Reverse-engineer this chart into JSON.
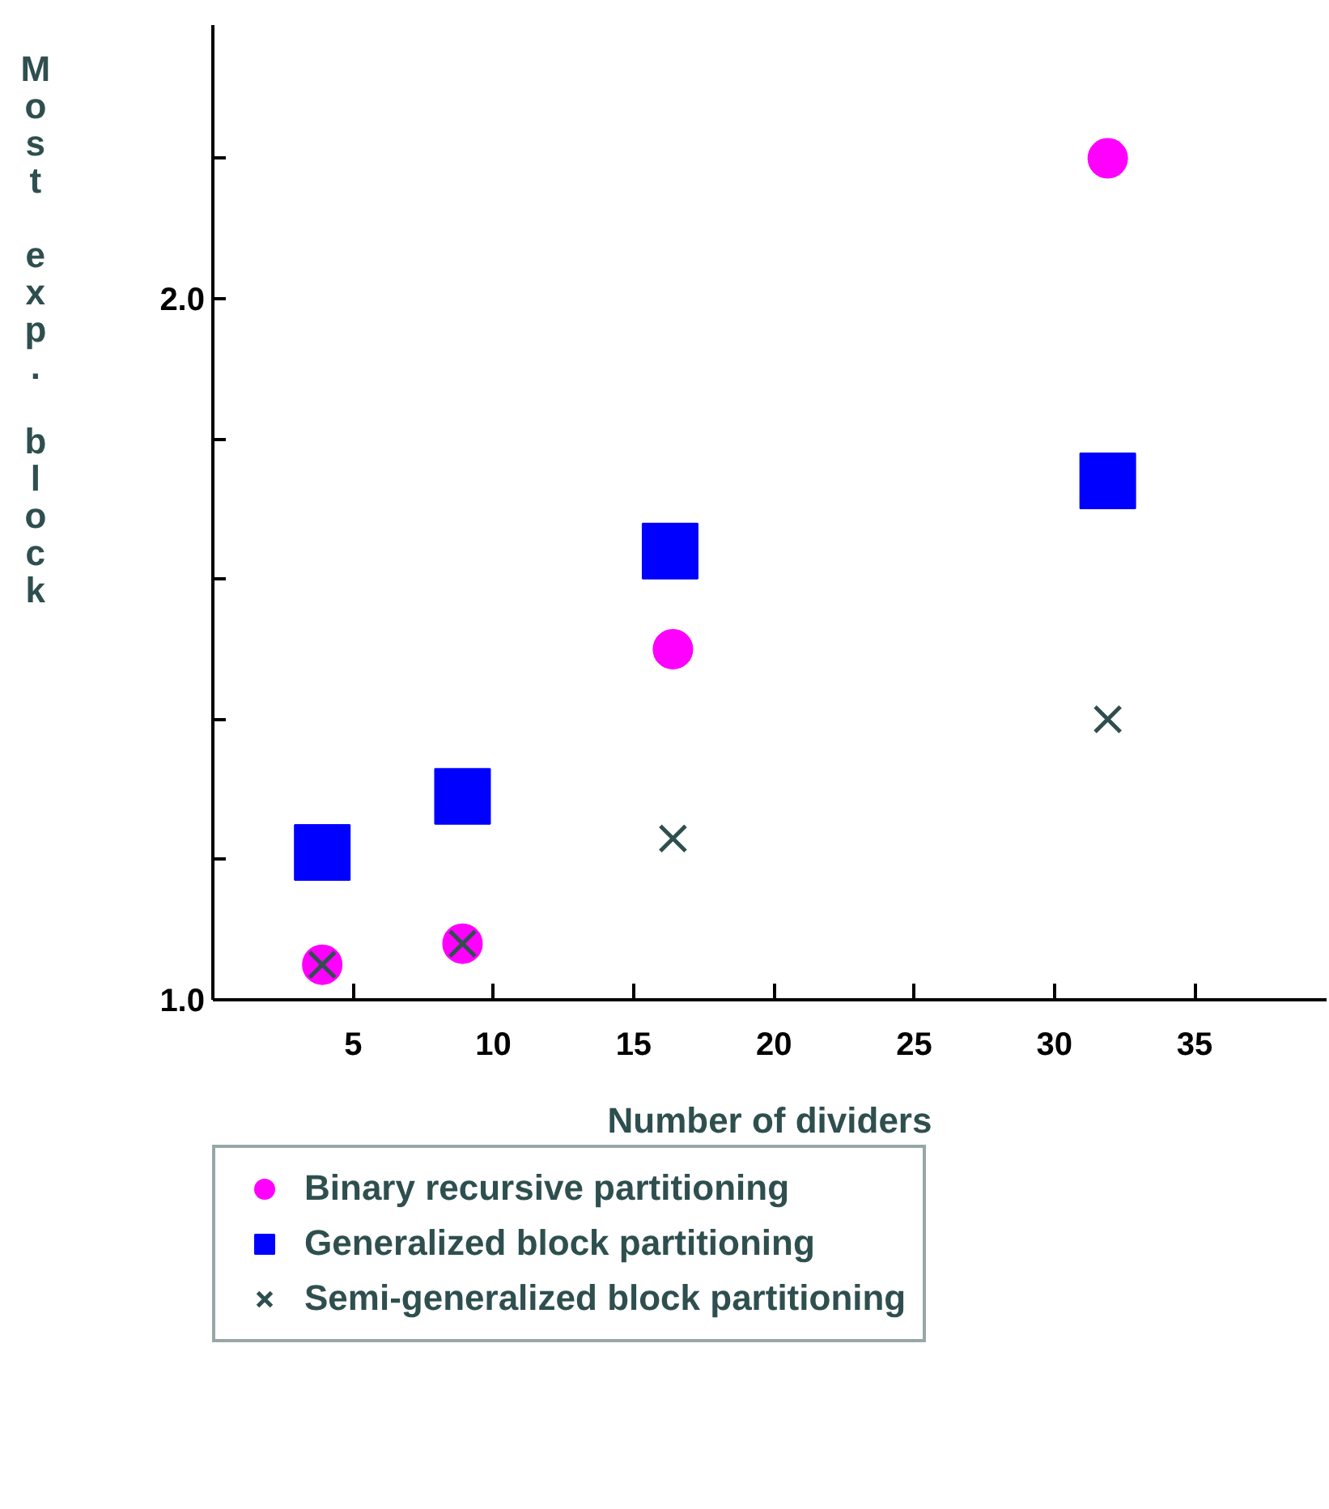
{
  "chart_data": {
    "type": "scatter",
    "xlabel": "Number of dividers",
    "ylabel": "Most exp. block",
    "xlim": [
      0,
      39.7
    ],
    "ylim": [
      1.0,
      2.39
    ],
    "xticks": [
      5,
      10,
      15,
      20,
      25,
      30,
      35
    ],
    "yticks": [
      {
        "value": 1.0,
        "label": "1.0"
      },
      {
        "value": 1.2,
        "label": null
      },
      {
        "value": 1.4,
        "label": null
      },
      {
        "value": 1.6,
        "label": null
      },
      {
        "value": 1.8,
        "label": null
      },
      {
        "value": 2.0,
        "label": "2.0"
      },
      {
        "value": 2.2,
        "label": null
      }
    ],
    "grid": false,
    "legend": "bottom",
    "series": [
      {
        "name": "Binary recursive partitioning",
        "color": "#ff00ff",
        "marker": "circle",
        "x": [
          3.9,
          8.9,
          16.4,
          31.9
        ],
        "values": [
          1.05,
          1.08,
          1.5,
          2.2
        ]
      },
      {
        "name": "Generalized block partitioning",
        "color": "#0000ff",
        "marker": "square",
        "x": [
          3.9,
          8.9,
          16.3,
          31.9
        ],
        "values": [
          1.21,
          1.29,
          1.64,
          1.74
        ]
      },
      {
        "name": "Semi-generalized block partitioning",
        "color": "#2f4f4f",
        "marker": "cross",
        "x": [
          3.9,
          8.9,
          16.4,
          31.9
        ],
        "values": [
          1.05,
          1.08,
          1.23,
          1.4
        ]
      }
    ]
  }
}
